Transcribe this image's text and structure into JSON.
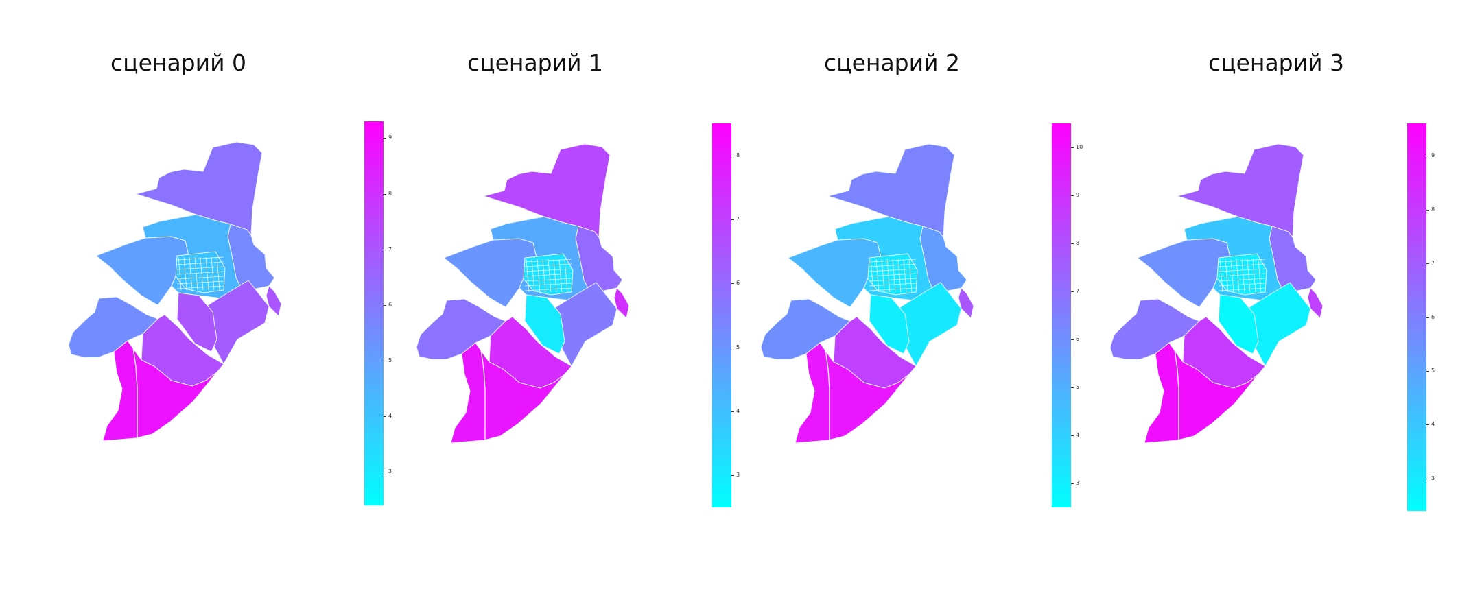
{
  "colormap": {
    "name": "cool",
    "low": "#00ffff",
    "high": "#ff00ff"
  },
  "panels": [
    {
      "title": "сценарий 0",
      "colorbar": {
        "min": 2.4,
        "max": 9.3,
        "ticks": [
          "3",
          "4",
          "5",
          "6",
          "7",
          "8",
          "9"
        ]
      },
      "region_values": {
        "north": 6.2,
        "upper_east": 5.6,
        "center": 4.4,
        "center_grid": 4.0,
        "west": 5.0,
        "southwest": 5.5,
        "south_center": 7.2,
        "east": 6.8,
        "far_south": 8.8,
        "east_edge": 7.0,
        "south_grid": 7.0
      }
    },
    {
      "title": "сценарий 1",
      "colorbar": {
        "min": 2.5,
        "max": 8.5,
        "ticks": [
          "3",
          "4",
          "5",
          "6",
          "7",
          "8"
        ]
      },
      "region_values": {
        "north": 6.8,
        "upper_east": 6.0,
        "center": 4.5,
        "center_grid": 3.2,
        "west": 5.0,
        "southwest": 5.8,
        "south_center": 7.5,
        "east": 5.6,
        "far_south": 8.0,
        "east_edge": 7.4,
        "south_grid": 3.0
      }
    },
    {
      "title": "сценарий 2",
      "colorbar": {
        "min": 2.5,
        "max": 10.5,
        "ticks": [
          "3",
          "4",
          "5",
          "6",
          "7",
          "8",
          "9",
          "10"
        ]
      },
      "region_values": {
        "north": 6.4,
        "upper_east": 5.6,
        "center": 4.0,
        "center_grid": 3.3,
        "west": 4.8,
        "southwest": 6.0,
        "south_center": 8.5,
        "east": 3.2,
        "far_south": 9.8,
        "east_edge": 7.8,
        "south_grid": 3.0
      }
    },
    {
      "title": "сценарий 3",
      "colorbar": {
        "min": 2.4,
        "max": 9.6,
        "ticks": [
          "3",
          "4",
          "5",
          "6",
          "7",
          "8",
          "9"
        ]
      },
      "region_values": {
        "north": 7.0,
        "upper_east": 6.4,
        "center": 4.0,
        "center_grid": 3.0,
        "west": 5.5,
        "southwest": 6.3,
        "south_center": 8.0,
        "east": 2.8,
        "far_south": 9.2,
        "east_edge": 7.8,
        "south_grid": 2.6
      }
    }
  ]
}
